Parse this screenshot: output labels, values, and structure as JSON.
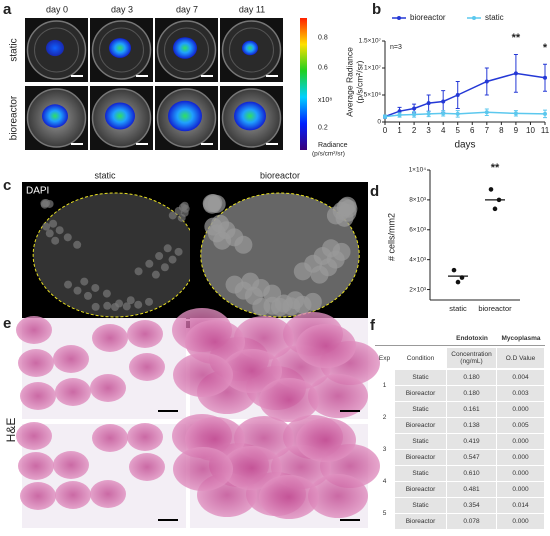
{
  "panel_a": {
    "label": "a",
    "columns": [
      "day 0",
      "day 3",
      "day 7",
      "day 11"
    ],
    "rows": [
      "static",
      "bioreactor"
    ],
    "colorbar": {
      "ticks": [
        0.8,
        0.6,
        0.2
      ],
      "lim": [
        0.05,
        0.93
      ],
      "multiplier": "x10⁸",
      "label": "Radiance",
      "unit": "(p/s/cm²/sr)"
    }
  },
  "chart_data": [
    {
      "type": "line",
      "panel_label": "b",
      "ylabel": [
        "Average Radiance",
        "(p/s/cm²/sr)"
      ],
      "xlabel": "days",
      "annotations": [
        "n=3",
        "**",
        "*"
      ],
      "x": [
        0,
        1,
        2,
        3,
        4,
        5,
        7,
        9,
        11
      ],
      "xlim": [
        0,
        11
      ],
      "xticks": [
        0,
        1,
        2,
        3,
        4,
        5,
        6,
        7,
        8,
        9,
        10,
        11
      ],
      "ylim": [
        0,
        15000000
      ],
      "yticks": [
        0,
        {
          "value": 5000000,
          "label": "5×10⁶"
        },
        {
          "value": 10000000,
          "label": "1×10⁷"
        },
        {
          "value": 15000000,
          "label": "1.5×10⁷"
        }
      ],
      "series": [
        {
          "name": "bioreactor",
          "color": "#2438d6",
          "values": [
            1000000,
            2000000,
            2500000,
            3500000,
            3800000,
            5000000,
            7500000,
            9000000,
            8200000
          ],
          "errors": [
            300000,
            700000,
            800000,
            1500000,
            2000000,
            2500000,
            2500000,
            3500000,
            2500000
          ]
        },
        {
          "name": "static",
          "color": "#5cc8ee",
          "values": [
            1000000,
            1300000,
            1400000,
            1500000,
            1600000,
            1500000,
            1800000,
            1600000,
            1500000
          ],
          "errors": [
            300000,
            400000,
            500000,
            500000,
            500000,
            600000,
            600000,
            500000,
            700000
          ]
        }
      ]
    },
    {
      "type": "dot",
      "panel_label": "d",
      "ylabel": "# cells/mm2",
      "categories": [
        "static",
        "bioreactor"
      ],
      "points": [
        [
          3300,
          2800,
          2500
        ],
        [
          8700,
          8000,
          7400
        ]
      ],
      "means": [
        2900,
        8000
      ],
      "color": "#111111",
      "ylim": [
        1300,
        10000
      ],
      "yticks": [
        {
          "value": 2000,
          "label": "2×10³"
        },
        {
          "value": 4000,
          "label": "4×10³"
        },
        {
          "value": 6000,
          "label": "6×10³"
        },
        {
          "value": 8000,
          "label": "8×10³"
        },
        {
          "value": 10000,
          "label": "1×10⁴"
        }
      ],
      "annotations": [
        "**"
      ]
    }
  ],
  "panel_c": {
    "label": "c",
    "stain": "DAPI",
    "columns": [
      "static",
      "bioreactor"
    ]
  },
  "panel_e": {
    "label": "e",
    "stain": "H&E"
  },
  "panel_f": {
    "label": "f",
    "group_headers": [
      "Endotoxin",
      "Mycoplasma"
    ],
    "columns": [
      "Exp",
      "Condition",
      "Concentration (ng/mL)",
      "O.D Value"
    ],
    "experiments": [
      {
        "exp": "1",
        "rows": [
          [
            "Static",
            "0.180",
            "0.004"
          ],
          [
            "Bioreactor",
            "0.180",
            "0.003"
          ]
        ]
      },
      {
        "exp": "2",
        "rows": [
          [
            "Static",
            "0.161",
            "0.000"
          ],
          [
            "Bioreactor",
            "0.138",
            "0.005"
          ]
        ]
      },
      {
        "exp": "3",
        "rows": [
          [
            "Static",
            "0.419",
            "0.000"
          ],
          [
            "Bioreactor",
            "0.547",
            "0.000"
          ]
        ]
      },
      {
        "exp": "4",
        "rows": [
          [
            "Static",
            "0.610",
            "0.000"
          ],
          [
            "Bioreactor",
            "0.481",
            "0.000"
          ]
        ]
      },
      {
        "exp": "5",
        "rows": [
          [
            "Static",
            "0.354",
            "0.014"
          ],
          [
            "Bioreactor",
            "0.078",
            "0.000"
          ]
        ]
      }
    ]
  }
}
